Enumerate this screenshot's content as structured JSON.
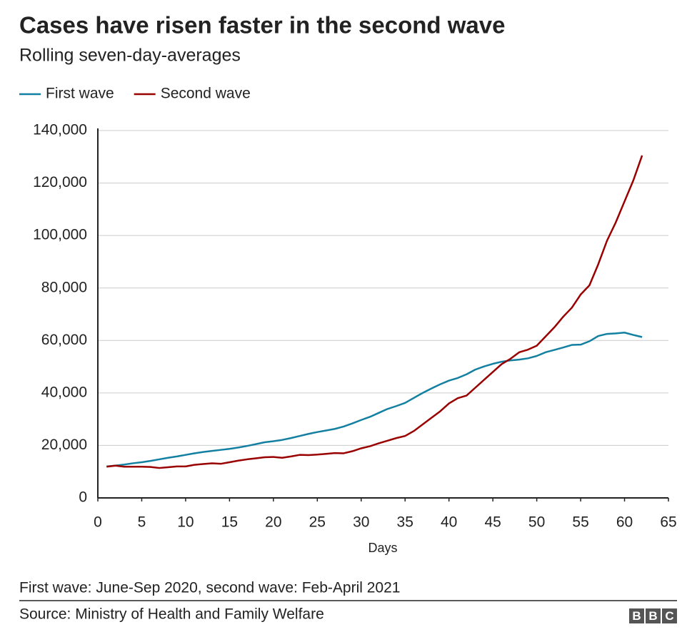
{
  "chart_data": {
    "type": "line",
    "title": "Cases have risen faster in the second wave",
    "subtitle": "Rolling seven-day-averages",
    "x_label": "Days",
    "note": "First wave: June-Sep 2020, second wave: Feb-April 2021",
    "source": "Source: Ministry of Health and Family Welfare",
    "logo": [
      "B",
      "B",
      "C"
    ],
    "legend": "top-left",
    "grid": true,
    "x": [
      1,
      2,
      3,
      4,
      5,
      6,
      7,
      8,
      9,
      10,
      11,
      12,
      13,
      14,
      15,
      16,
      17,
      18,
      19,
      20,
      21,
      22,
      23,
      24,
      25,
      26,
      27,
      28,
      29,
      30,
      31,
      32,
      33,
      34,
      35,
      36,
      37,
      38,
      39,
      40,
      41,
      42,
      43,
      44,
      45,
      46,
      47,
      48,
      49,
      50,
      51,
      52,
      53,
      54,
      55,
      56,
      57,
      58,
      59,
      60,
      61,
      62
    ],
    "series": [
      {
        "name": "First wave",
        "color": "#1380a1",
        "values": [
          12000,
          12300,
          12700,
          13200,
          13600,
          14100,
          14700,
          15300,
          15800,
          16400,
          17000,
          17500,
          17900,
          18300,
          18700,
          19200,
          19800,
          20500,
          21200,
          21600,
          22100,
          22800,
          23600,
          24400,
          25100,
          25700,
          26300,
          27200,
          28400,
          29700,
          30900,
          32400,
          33900,
          35000,
          36200,
          38100,
          40000,
          41700,
          43300,
          44700,
          45700,
          47100,
          48900,
          50100,
          51100,
          51900,
          52400,
          52700,
          53200,
          54100,
          55500,
          56400,
          57300,
          58300,
          58400,
          59700,
          61700,
          62500,
          62700,
          63000,
          62100,
          61300
        ]
      },
      {
        "name": "Second wave",
        "color": "#990000",
        "values": [
          11900,
          12300,
          11900,
          11900,
          11900,
          11800,
          11400,
          11700,
          12000,
          12000,
          12600,
          12900,
          13200,
          13000,
          13600,
          14200,
          14700,
          15100,
          15500,
          15600,
          15300,
          15800,
          16400,
          16300,
          16500,
          16800,
          17100,
          17000,
          17800,
          18900,
          19700,
          20800,
          21800,
          22800,
          23600,
          25500,
          28000,
          30500,
          33000,
          36000,
          38000,
          39000,
          42000,
          45000,
          48000,
          51000,
          53000,
          55500,
          56500,
          58000,
          61500,
          65000,
          69000,
          72500,
          77500,
          81000,
          89000,
          98000,
          105000,
          113000,
          121000,
          130500
        ]
      }
    ],
    "xlim": [
      0,
      65
    ],
    "xticks": [
      0,
      5,
      10,
      15,
      20,
      25,
      30,
      35,
      40,
      45,
      50,
      55,
      60,
      65
    ],
    "ylim": [
      0,
      140000
    ],
    "yticks": [
      0,
      {
        "value": 20000,
        "label": "20,000"
      },
      {
        "value": 40000,
        "label": "40,000"
      },
      {
        "value": 60000,
        "label": "60,000"
      },
      {
        "value": 80000,
        "label": "80,000"
      },
      {
        "value": 100000,
        "label": "100,000"
      },
      {
        "value": 120000,
        "label": "120,000"
      },
      {
        "value": 140000,
        "label": "140,000"
      }
    ]
  }
}
